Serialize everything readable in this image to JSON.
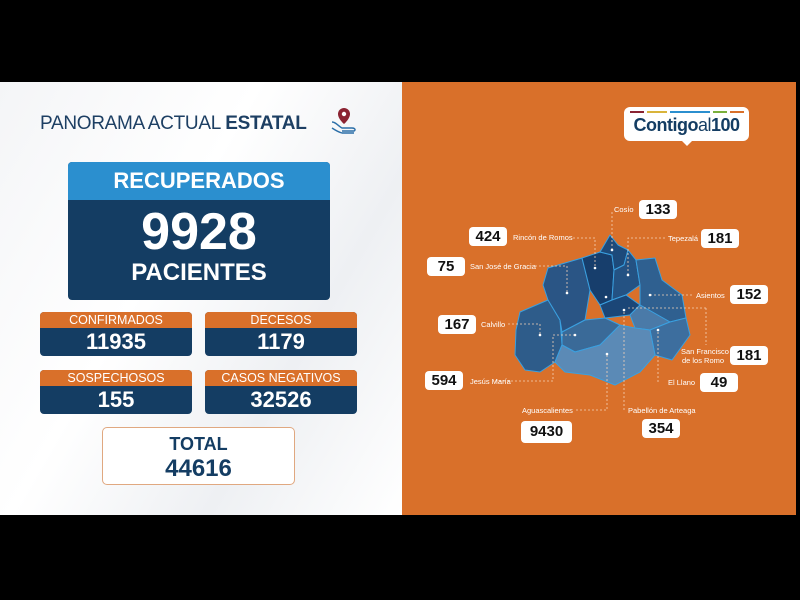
{
  "header": {
    "title_light": "PANORAMA ACTUAL ",
    "title_bold": "ESTATAL",
    "icon": "map-pin-hand-icon"
  },
  "recuperados": {
    "label": "RECUPERADOS",
    "value": "9928",
    "unit": "PACIENTES"
  },
  "stats": [
    {
      "label": "CONFIRMADOS",
      "value": "11935"
    },
    {
      "label": "DECESOS",
      "value": "1179"
    },
    {
      "label": "SOSPECHOSOS",
      "value": "155"
    },
    {
      "label": "CASOS NEGATIVOS",
      "value": "32526"
    }
  ],
  "total": {
    "label": "TOTAL",
    "value": "44616"
  },
  "logo": {
    "text_bold": "Contigo",
    "text_light": "al",
    "text_num": "100",
    "bar_colors": [
      "#8b2332",
      "#d9b43a",
      "#2b8fcf",
      "#7ab03c",
      "#d9702a"
    ]
  },
  "municipios": [
    {
      "name": "Cosío",
      "value": "133"
    },
    {
      "name": "Rincón de Romos",
      "value": "424"
    },
    {
      "name": "Tepezalá",
      "value": "181"
    },
    {
      "name": "San José de Gracia",
      "value": "75"
    },
    {
      "name": "Asientos",
      "value": "152"
    },
    {
      "name": "Calvillo",
      "value": "167"
    },
    {
      "name": "San Francisco",
      "name2": "de los Romo",
      "value": "181"
    },
    {
      "name": "Jesús María",
      "value": "594"
    },
    {
      "name": "El Llano",
      "value": "49"
    },
    {
      "name": "Aguascalientes",
      "value": "9430"
    },
    {
      "name": "Pabellón de Arteaga",
      "value": "354"
    }
  ],
  "colors": {
    "orange": "#d9702a",
    "navy": "#143d63",
    "blue": "#2b8fcf"
  }
}
